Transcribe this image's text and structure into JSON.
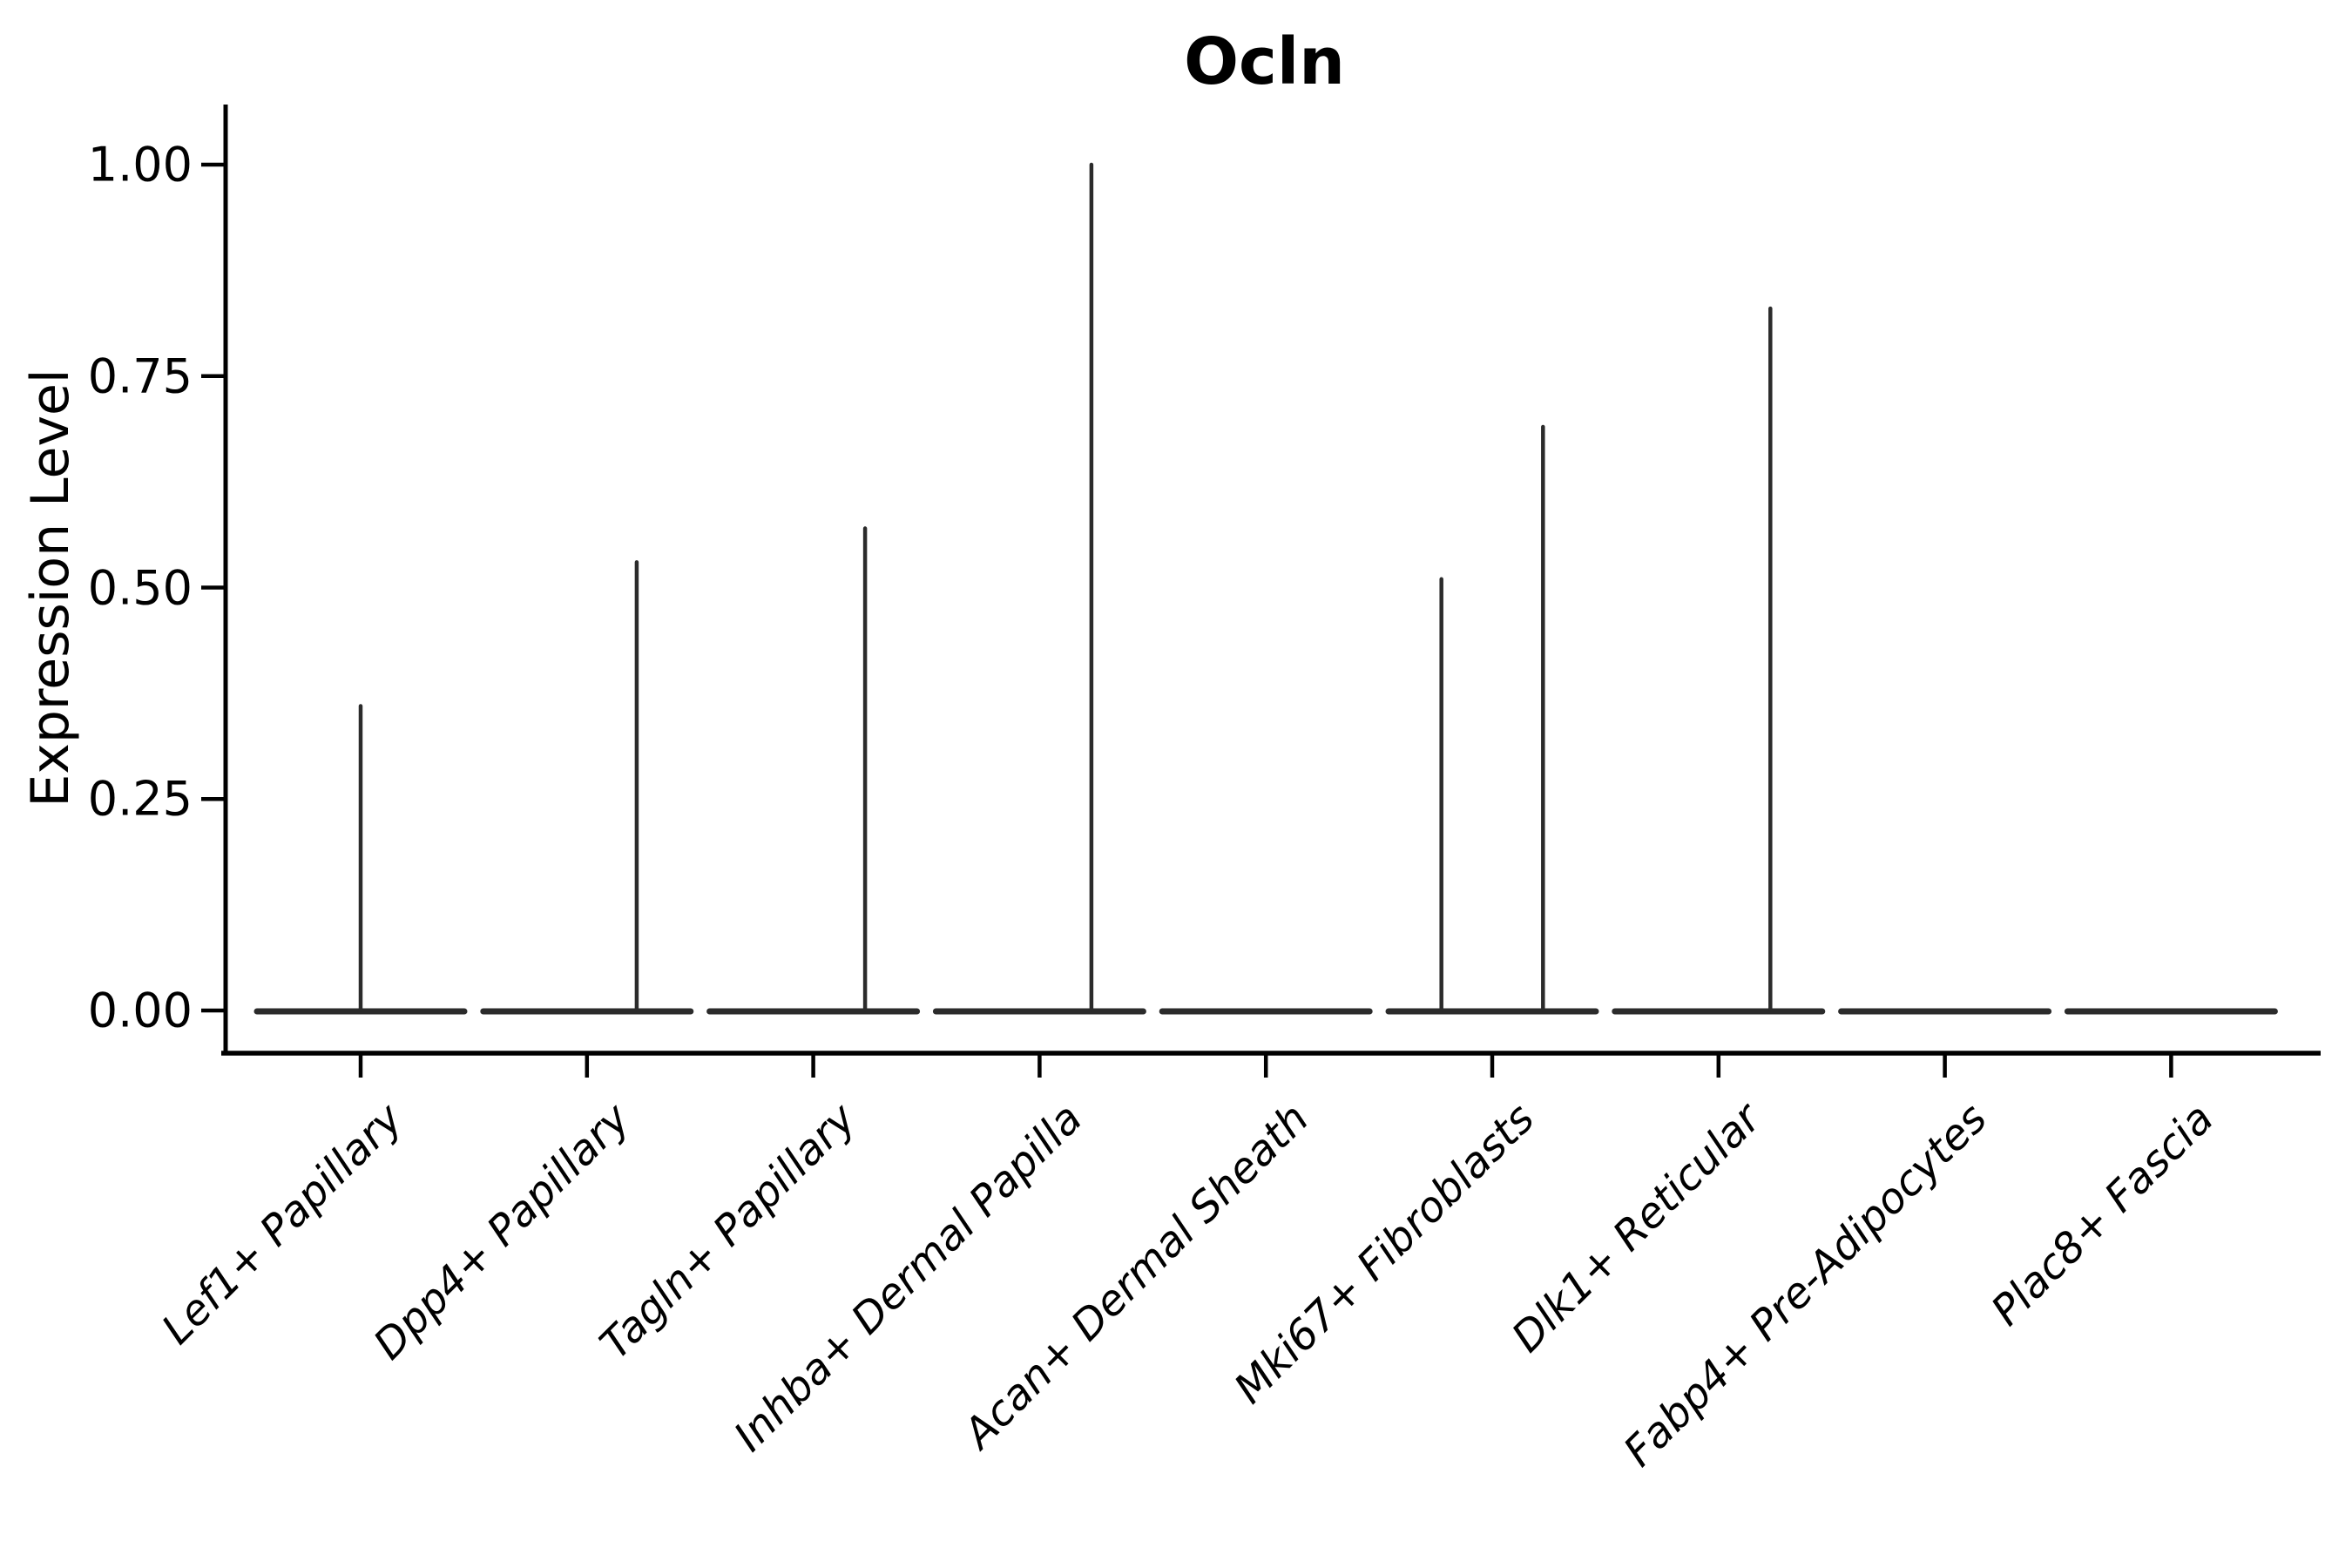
{
  "chart_data": {
    "type": "violin",
    "title": "Ocln",
    "ylabel": "Expression Level",
    "xlabel": "",
    "ylim": [
      0,
      1.05
    ],
    "yticks": [
      0.0,
      0.25,
      0.5,
      0.75,
      1.0
    ],
    "ytick_labels": [
      "0.00",
      "0.25",
      "0.50",
      "0.75",
      "1.00"
    ],
    "grid": false,
    "legend": "none",
    "axis_color": "#000000",
    "violin_color": "#2b2b2b",
    "categories": [
      "Lef1+ Papillary",
      "Dpp4+ Papillary",
      "Tagln+ Papillary",
      "Inhba+ Dermal Papilla",
      "Acan+ Dermal Sheath",
      "Mki67+ Fibroblasts",
      "Dlk1+ Reticular",
      "Fabp4+ Pre-Adipocytes",
      "Plac8+ Fascia"
    ],
    "violins": [
      {
        "category": "Lef1+ Papillary",
        "base_value": 0,
        "max_value": 0.36,
        "spikes": [
          {
            "value": 0.36,
            "x_offset_frac": 0.0
          }
        ]
      },
      {
        "category": "Dpp4+ Papillary",
        "base_value": 0,
        "max_value": 0.53,
        "spikes": [
          {
            "value": 0.53,
            "x_offset_frac": 0.48
          }
        ]
      },
      {
        "category": "Tagln+ Papillary",
        "base_value": 0,
        "max_value": 0.57,
        "spikes": [
          {
            "value": 0.57,
            "x_offset_frac": 0.5
          }
        ]
      },
      {
        "category": "Inhba+ Dermal Papilla",
        "base_value": 0,
        "max_value": 1.0,
        "spikes": [
          {
            "value": 1.0,
            "x_offset_frac": 0.5
          }
        ]
      },
      {
        "category": "Acan+ Dermal Sheath",
        "base_value": 0,
        "max_value": 0.0,
        "spikes": []
      },
      {
        "category": "Mki67+ Fibroblasts",
        "base_value": 0,
        "max_value": 0.69,
        "spikes": [
          {
            "value": 0.51,
            "x_offset_frac": -0.49
          },
          {
            "value": 0.69,
            "x_offset_frac": 0.49
          }
        ]
      },
      {
        "category": "Dlk1+ Reticular",
        "base_value": 0,
        "max_value": 0.83,
        "spikes": [
          {
            "value": 0.83,
            "x_offset_frac": 0.5
          }
        ]
      },
      {
        "category": "Fabp4+ Pre-Adipocytes",
        "base_value": 0,
        "max_value": 0.0,
        "spikes": []
      },
      {
        "category": "Plac8+ Fascia",
        "base_value": 0,
        "max_value": 0.0,
        "spikes": []
      }
    ]
  }
}
